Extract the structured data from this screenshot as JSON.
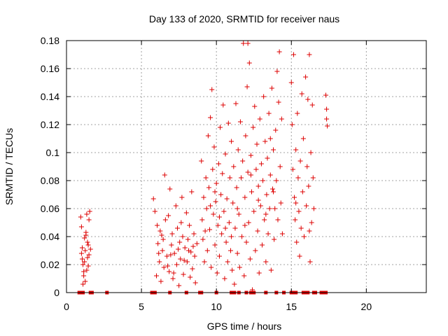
{
  "chart_data": {
    "type": "scatter",
    "title": "Day 133 of 2020, SRMTID for receiver naus",
    "xlabel": "GPS time / hours",
    "ylabel": "SRMTID / TECUs",
    "xlim": [
      0,
      24
    ],
    "ylim": [
      0,
      0.18
    ],
    "xticks": [
      0,
      5,
      10,
      15,
      20
    ],
    "xtick_labels": [
      "0",
      "5",
      "10",
      "15",
      "20"
    ],
    "yticks": [
      0,
      0.02,
      0.04,
      0.06,
      0.08,
      0.1,
      0.12,
      0.14,
      0.16,
      0.18
    ],
    "ytick_labels": [
      "0",
      "0.02",
      "0.04",
      "0.06",
      "0.08",
      "0.1",
      "0.12",
      "0.14",
      "0.16",
      "0.18"
    ],
    "grid": true,
    "marker": "plus",
    "color": "#dd0000",
    "series": [
      {
        "name": "SRMTID",
        "points": [
          [
            0.95,
            0.054
          ],
          [
            1.0,
            0.047
          ],
          [
            1.05,
            0.032
          ],
          [
            1.1,
            0.02
          ],
          [
            1.15,
            0.015
          ],
          [
            1.2,
            0.039
          ],
          [
            1.25,
            0.03
          ],
          [
            1.3,
            0.041
          ],
          [
            1.35,
            0.056
          ],
          [
            1.4,
            0.025
          ],
          [
            1.45,
            0.034
          ],
          [
            1.5,
            0.052
          ],
          [
            1.55,
            0.058
          ],
          [
            1.6,
            0.031
          ],
          [
            1.05,
            0.024
          ],
          [
            1.15,
            0.012
          ],
          [
            1.25,
            0.008
          ],
          [
            1.3,
            0.043
          ],
          [
            1.4,
            0.036
          ],
          [
            1.45,
            0.019
          ],
          [
            1.0,
            0.028
          ],
          [
            1.2,
            0.022
          ],
          [
            1.35,
            0.016
          ],
          [
            1.5,
            0.027
          ],
          [
            1.1,
            0.006
          ],
          [
            5.8,
            0.067
          ],
          [
            5.9,
            0.058
          ],
          [
            6.0,
            0.012
          ],
          [
            6.05,
            0.048
          ],
          [
            6.1,
            0.035
          ],
          [
            6.2,
            0.022
          ],
          [
            6.3,
            0.008
          ],
          [
            6.35,
            0.041
          ],
          [
            6.4,
            0.03
          ],
          [
            6.5,
            0.018
          ],
          [
            6.55,
            0.084
          ],
          [
            6.6,
            0.052
          ],
          [
            6.7,
            0.026
          ],
          [
            6.8,
            0.055
          ],
          [
            6.85,
            0.015
          ],
          [
            6.9,
            0.074
          ],
          [
            7.0,
            0.034
          ],
          [
            7.05,
            0.042
          ],
          [
            7.1,
            0.01
          ],
          [
            7.2,
            0.028
          ],
          [
            7.3,
            0.062
          ],
          [
            7.35,
            0.02
          ],
          [
            7.4,
            0.046
          ],
          [
            7.5,
            0.005
          ],
          [
            7.55,
            0.036
          ],
          [
            7.6,
            0.024
          ],
          [
            7.7,
            0.068
          ],
          [
            7.75,
            0.04
          ],
          [
            7.8,
            0.013
          ],
          [
            7.9,
            0.032
          ],
          [
            8.0,
            0.057
          ],
          [
            8.05,
            0.022
          ],
          [
            8.1,
            0.038
          ],
          [
            8.2,
            0.048
          ],
          [
            8.3,
            0.029
          ],
          [
            8.35,
            0.072
          ],
          [
            8.4,
            0.017
          ],
          [
            8.5,
            0.042
          ],
          [
            8.55,
            0.026
          ],
          [
            8.6,
            0.007
          ],
          [
            8.7,
            0.035
          ],
          [
            6.15,
            0.028
          ],
          [
            6.45,
            0.038
          ],
          [
            6.75,
            0.019
          ],
          [
            7.15,
            0.014
          ],
          [
            7.45,
            0.031
          ],
          [
            7.85,
            0.023
          ],
          [
            8.25,
            0.011
          ],
          [
            8.45,
            0.033
          ],
          [
            6.25,
            0.044
          ],
          [
            6.95,
            0.027
          ],
          [
            7.65,
            0.05
          ],
          [
            8.15,
            0.03
          ],
          [
            9.0,
            0.094
          ],
          [
            9.05,
            0.052
          ],
          [
            9.1,
            0.038
          ],
          [
            9.15,
            0.068
          ],
          [
            9.2,
            0.022
          ],
          [
            9.3,
            0.082
          ],
          [
            9.35,
            0.06
          ],
          [
            9.4,
            0.03
          ],
          [
            9.45,
            0.112
          ],
          [
            9.5,
            0.075
          ],
          [
            9.55,
            0.045
          ],
          [
            9.6,
            0.125
          ],
          [
            9.65,
            0.018
          ],
          [
            9.7,
            0.145
          ],
          [
            9.75,
            0.088
          ],
          [
            9.8,
            0.056
          ],
          [
            9.85,
            0.104
          ],
          [
            9.9,
            0.034
          ],
          [
            9.95,
            0.065
          ],
          [
            10.0,
            0.078
          ],
          [
            10.05,
            0.014
          ],
          [
            10.1,
            0.048
          ],
          [
            10.15,
            0.092
          ],
          [
            10.2,
            0.026
          ],
          [
            10.25,
            0.118
          ],
          [
            10.3,
            0.07
          ],
          [
            10.35,
            0.042
          ],
          [
            10.4,
            0.085
          ],
          [
            10.45,
            0.134
          ],
          [
            10.5,
            0.058
          ],
          [
            10.55,
            0.01
          ],
          [
            10.6,
            0.099
          ],
          [
            10.65,
            0.036
          ],
          [
            10.7,
            0.067
          ],
          [
            10.75,
            0.022
          ],
          [
            10.8,
            0.121
          ],
          [
            10.85,
            0.05
          ],
          [
            10.9,
            0.082
          ],
          [
            10.95,
            0.03
          ],
          [
            11.0,
            0.108
          ],
          [
            9.25,
            0.044
          ],
          [
            9.6,
            0.062
          ],
          [
            9.9,
            0.072
          ],
          [
            10.2,
            0.054
          ],
          [
            10.6,
            0.046
          ],
          [
            11.0,
            0.04
          ],
          [
            11.05,
            0.016
          ],
          [
            11.1,
            0.064
          ],
          [
            11.15,
            0.09
          ],
          [
            11.2,
            0.006
          ],
          [
            11.25,
            0.046
          ],
          [
            11.3,
            0.135
          ],
          [
            11.35,
            0.075
          ],
          [
            11.4,
            0.028
          ],
          [
            11.45,
            0.102
          ],
          [
            11.5,
            0.056
          ],
          [
            11.55,
            0.018
          ],
          [
            11.6,
            0.122
          ],
          [
            11.65,
            0.082
          ],
          [
            11.7,
            0.04
          ],
          [
            11.75,
            0.094
          ],
          [
            11.8,
            0.178
          ],
          [
            11.85,
            0.012
          ],
          [
            11.9,
            0.068
          ],
          [
            11.95,
            0.112
          ],
          [
            12.0,
            0.036
          ],
          [
            12.05,
            0.147
          ],
          [
            12.1,
            0.086
          ],
          [
            12.15,
            0.05
          ],
          [
            12.2,
            0.164
          ],
          [
            12.25,
            0.024
          ],
          [
            12.3,
            0.098
          ],
          [
            12.35,
            0.072
          ],
          [
            12.4,
            0.002
          ],
          [
            12.45,
            0.118
          ],
          [
            12.5,
            0.058
          ],
          [
            12.55,
            0.133
          ],
          [
            12.6,
            0.03
          ],
          [
            12.65,
            0.088
          ],
          [
            12.7,
            0.106
          ],
          [
            12.75,
            0.044
          ],
          [
            12.8,
            0.076
          ],
          [
            12.85,
            0.014
          ],
          [
            12.9,
            0.124
          ],
          [
            12.95,
            0.062
          ],
          [
            13.0,
            0.092
          ],
          [
            13.05,
            0.034
          ],
          [
            13.1,
            0.08
          ],
          [
            13.15,
            0.14
          ],
          [
            13.2,
            0.052
          ],
          [
            13.25,
            0.108
          ],
          [
            13.3,
            0.022
          ],
          [
            13.35,
            0.07
          ],
          [
            13.4,
            0.096
          ],
          [
            13.45,
            0.042
          ],
          [
            13.5,
            0.128
          ],
          [
            13.55,
            0.06
          ],
          [
            13.6,
            0.084
          ],
          [
            13.65,
            0.016
          ],
          [
            13.7,
            0.146
          ],
          [
            13.75,
            0.074
          ],
          [
            13.8,
            0.102
          ],
          [
            13.85,
            0.038
          ],
          [
            13.9,
            0.06
          ],
          [
            13.95,
            0.116
          ],
          [
            14.0,
            0.08
          ],
          [
            14.05,
            0.158
          ],
          [
            14.1,
            0.052
          ],
          [
            14.15,
            0.136
          ],
          [
            14.2,
            0.172
          ],
          [
            14.25,
            0.09
          ],
          [
            14.3,
            0.064
          ],
          [
            14.35,
            0.124
          ],
          [
            14.4,
            0.042
          ],
          [
            11.4,
            0.06
          ],
          [
            11.9,
            0.048
          ],
          [
            12.3,
            0.084
          ],
          [
            12.8,
            0.066
          ],
          [
            13.3,
            0.056
          ],
          [
            13.8,
            0.072
          ],
          [
            12.1,
            0.178
          ],
          [
            13.6,
            0.11
          ],
          [
            15.0,
            0.15
          ],
          [
            15.05,
            0.12
          ],
          [
            15.1,
            0.088
          ],
          [
            15.15,
            0.17
          ],
          [
            15.2,
            0.068
          ],
          [
            15.25,
            0.052
          ],
          [
            15.3,
            0.102
          ],
          [
            15.35,
            0.036
          ],
          [
            15.4,
            0.128
          ],
          [
            15.45,
            0.082
          ],
          [
            15.5,
            0.058
          ],
          [
            15.55,
            0.026
          ],
          [
            15.6,
            0.094
          ],
          [
            15.65,
            0.046
          ],
          [
            15.7,
            0.142
          ],
          [
            15.75,
            0.072
          ],
          [
            15.8,
            0.11
          ],
          [
            15.85,
            0.04
          ],
          [
            15.95,
            0.154
          ],
          [
            16.0,
            0.062
          ],
          [
            16.05,
            0.09
          ],
          [
            16.1,
            0.138
          ],
          [
            16.15,
            0.076
          ],
          [
            16.2,
            0.17
          ],
          [
            16.25,
            0.022
          ],
          [
            16.3,
            0.1
          ],
          [
            16.35,
            0.05
          ],
          [
            16.4,
            0.134
          ],
          [
            16.45,
            0.082
          ],
          [
            16.5,
            0.06
          ],
          [
            15.3,
            0.064
          ],
          [
            16.2,
            0.044
          ],
          [
            17.3,
            0.141
          ],
          [
            17.35,
            0.131
          ],
          [
            17.35,
            0.124
          ],
          [
            17.4,
            0.119
          ]
        ]
      }
    ],
    "zero_points_x": [
      0.85,
      0.9,
      1.0,
      1.1,
      1.6,
      1.7,
      2.7,
      5.7,
      5.8,
      5.9,
      6.9,
      8.0,
      8.9,
      9.0,
      10.0,
      11.0,
      11.2,
      11.5,
      12.0,
      12.3,
      12.5,
      13.3,
      14.0,
      14.5,
      15.0,
      15.1,
      15.3,
      15.8,
      15.9,
      16.0,
      16.1,
      16.5,
      16.6,
      17.0,
      17.1,
      17.3
    ]
  }
}
